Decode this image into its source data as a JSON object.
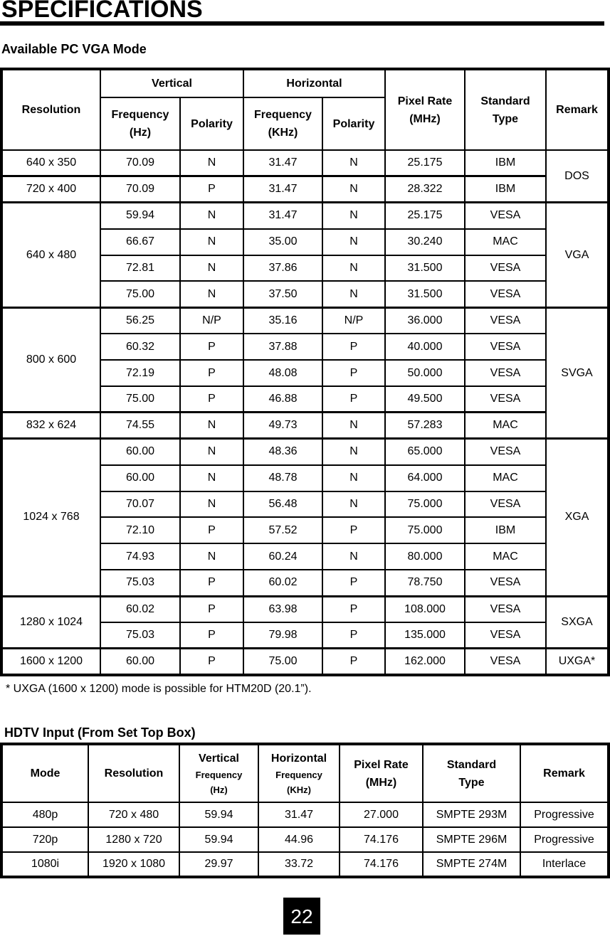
{
  "title": "SPECIFICATIONS",
  "pc_section": {
    "heading": "Available PC VGA Mode",
    "headers": {
      "resolution": "Resolution",
      "vertical": "Vertical",
      "horizontal": "Horizontal",
      "v_frequency": "Frequency",
      "v_frequency_unit": "(Hz)",
      "v_polarity": "Polarity",
      "h_frequency": "Frequency",
      "h_frequency_unit": "(KHz)",
      "h_polarity": "Polarity",
      "pixel_rate": "Pixel Rate",
      "pixel_rate_unit": "(MHz)",
      "standard": "Standard",
      "standard_2": "Type",
      "remark": "Remark"
    },
    "rows": [
      [
        "640 x 350",
        "70.09",
        "N",
        "31.47",
        "N",
        "25.175",
        "IBM",
        "DOS"
      ],
      [
        "720 x 400",
        "70.09",
        "P",
        "31.47",
        "N",
        "28.322",
        "IBM",
        "DOS"
      ],
      [
        "640 x 480",
        "59.94",
        "N",
        "31.47",
        "N",
        "25.175",
        "VESA",
        "VGA"
      ],
      [
        "640 x 480",
        "66.67",
        "N",
        "35.00",
        "N",
        "30.240",
        "MAC",
        "VGA"
      ],
      [
        "640 x 480",
        "72.81",
        "N",
        "37.86",
        "N",
        "31.500",
        "VESA",
        "VGA"
      ],
      [
        "640 x 480",
        "75.00",
        "N",
        "37.50",
        "N",
        "31.500",
        "VESA",
        "VGA"
      ],
      [
        "800 x 600",
        "56.25",
        "N/P",
        "35.16",
        "N/P",
        "36.000",
        "VESA",
        "SVGA"
      ],
      [
        "800 x 600",
        "60.32",
        "P",
        "37.88",
        "P",
        "40.000",
        "VESA",
        "SVGA"
      ],
      [
        "800 x 600",
        "72.19",
        "P",
        "48.08",
        "P",
        "50.000",
        "VESA",
        "SVGA"
      ],
      [
        "800 x 600",
        "75.00",
        "P",
        "46.88",
        "P",
        "49.500",
        "VESA",
        "SVGA"
      ],
      [
        "832 x 624",
        "74.55",
        "N",
        "49.73",
        "N",
        "57.283",
        "MAC",
        "SVGA"
      ],
      [
        "1024 x 768",
        "60.00",
        "N",
        "48.36",
        "N",
        "65.000",
        "VESA",
        "XGA"
      ],
      [
        "1024 x 768",
        "60.00",
        "N",
        "48.78",
        "N",
        "64.000",
        "MAC",
        "XGA"
      ],
      [
        "1024 x 768",
        "70.07",
        "N",
        "56.48",
        "N",
        "75.000",
        "VESA",
        "XGA"
      ],
      [
        "1024 x 768",
        "72.10",
        "P",
        "57.52",
        "P",
        "75.000",
        "IBM",
        "XGA"
      ],
      [
        "1024 x 768",
        "74.93",
        "N",
        "60.24",
        "N",
        "80.000",
        "MAC",
        "XGA"
      ],
      [
        "1024 x 768",
        "75.03",
        "P",
        "60.02",
        "P",
        "78.750",
        "VESA",
        "XGA"
      ],
      [
        "1280 x 1024",
        "60.02",
        "P",
        "63.98",
        "P",
        "108.000",
        "VESA",
        "SXGA"
      ],
      [
        "1280 x 1024",
        "75.03",
        "P",
        "79.98",
        "P",
        "135.000",
        "VESA",
        "SXGA"
      ],
      [
        "1600 x 1200",
        "60.00",
        "P",
        "75.00",
        "P",
        "162.000",
        "VESA",
        "UXGA*"
      ]
    ],
    "note": "* UXGA (1600 x 1200) mode is possible for HTM20D (20.1”)."
  },
  "hdtv_section": {
    "heading": "HDTV Input (From Set Top Box)",
    "headers": {
      "mode": "Mode",
      "resolution": "Resolution",
      "vertical": "Vertical",
      "v_frequency": "Frequency",
      "v_unit": "(Hz)",
      "horizontal": "Horizontal",
      "h_frequency": "Frequency",
      "h_unit": "(KHz)",
      "pixel_rate": "Pixel Rate",
      "pixel_rate_unit": "(MHz)",
      "standard": "Standard",
      "standard_2": "Type",
      "remark": "Remark"
    },
    "rows": [
      [
        "480p",
        "720 x 480",
        "59.94",
        "31.47",
        "27.000",
        "SMPTE 293M",
        "Progressive"
      ],
      [
        "720p",
        "1280 x 720",
        "59.94",
        "44.96",
        "74.176",
        "SMPTE 296M",
        "Progressive"
      ],
      [
        "1080i",
        "1920 x 1080",
        "29.97",
        "33.72",
        "74.176",
        "SMPTE 274M",
        "Interlace"
      ]
    ]
  },
  "page_number": "22"
}
